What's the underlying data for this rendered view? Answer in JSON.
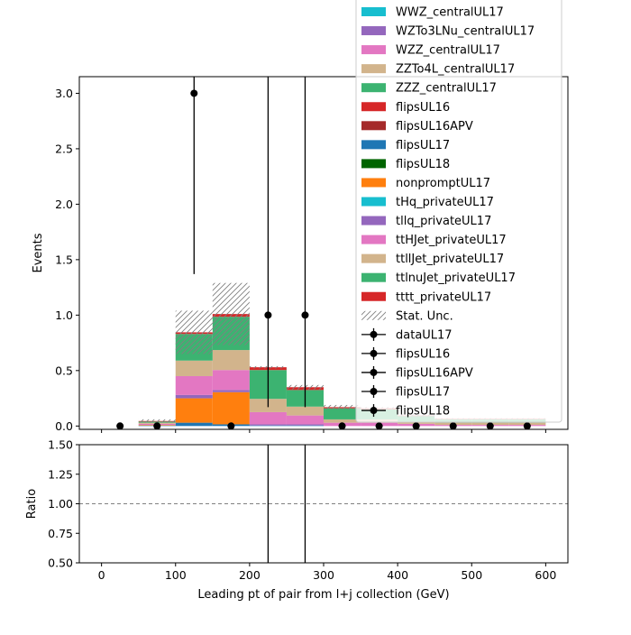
{
  "chart_data": [
    {
      "type": "stacked-bar",
      "panel": "main",
      "xlabel": "",
      "ylabel": "Events",
      "xlim": [
        -30,
        630
      ],
      "ylim": [
        -0.03,
        3.15
      ],
      "y_ticks": [
        0.0,
        0.5,
        1.0,
        1.5,
        2.0,
        2.5,
        3.0
      ],
      "y_tick_labels": [
        "0.0",
        "0.5",
        "1.0",
        "1.5",
        "2.0",
        "2.5",
        "3.0"
      ],
      "x_ticks": [
        0,
        100,
        200,
        300,
        400,
        500,
        600
      ],
      "bin_edges": [
        0,
        50,
        100,
        150,
        200,
        250,
        300,
        350,
        400,
        450,
        500,
        550,
        600
      ],
      "stack_series": [
        {
          "name": "flipsUL17",
          "color": "#1f77b4",
          "values": [
            0,
            0.005,
            0.03,
            0.015,
            0.005,
            0.005,
            0,
            0,
            0,
            0,
            0,
            0
          ]
        },
        {
          "name": "nonpromptUL17",
          "color": "#ff7f0e",
          "values": [
            0,
            0.005,
            0.22,
            0.29,
            0,
            0,
            0,
            0,
            0,
            0,
            0,
            0
          ]
        },
        {
          "name": "tllq_privateUL17",
          "color": "#9467bd",
          "values": [
            0,
            0,
            0.03,
            0.02,
            0.01,
            0.01,
            0,
            0,
            0,
            0,
            0,
            0
          ]
        },
        {
          "name": "ttHJet_privateUL17",
          "color": "#e377c2",
          "values": [
            0,
            0.01,
            0.17,
            0.18,
            0.11,
            0.08,
            0.03,
            0.03,
            0.02,
            0.01,
            0.01,
            0.01
          ]
        },
        {
          "name": "ttllJet_privateUL17",
          "color": "#d2b48c",
          "values": [
            0,
            0.01,
            0.14,
            0.18,
            0.12,
            0.08,
            0.03,
            0.03,
            0.02,
            0.02,
            0.02,
            0.02
          ]
        },
        {
          "name": "ttlnuJet_privateUL17",
          "color": "#3cb371",
          "values": [
            0,
            0.01,
            0.24,
            0.3,
            0.26,
            0.15,
            0.1,
            0.09,
            0.05,
            0.03,
            0.03,
            0.03
          ]
        },
        {
          "name": "tttt_privateUL17",
          "color": "#d62728",
          "values": [
            0,
            0.005,
            0.015,
            0.025,
            0.025,
            0.025,
            0.01,
            0.01,
            0.005,
            0.005,
            0.005,
            0.005
          ]
        }
      ],
      "stat_unc_top": [
        0,
        0.06,
        1.04,
        1.29,
        0.54,
        0.37,
        0.19,
        0.17,
        0.11,
        0.07,
        0.07,
        0.07
      ],
      "data_points": {
        "name": "dataUL17",
        "x": [
          25,
          75,
          125,
          175,
          225,
          275,
          325,
          375,
          425,
          475,
          525,
          575
        ],
        "y": [
          0,
          0,
          3.0,
          0,
          1.0,
          1.0,
          0,
          0,
          0,
          0,
          0,
          0
        ],
        "yerr_low": [
          0,
          0,
          1.63,
          0,
          0.83,
          0.83,
          0,
          0,
          0,
          0,
          0,
          0
        ],
        "yerr_high": [
          0,
          0,
          2.92,
          0,
          2.3,
          2.3,
          0,
          0,
          0,
          0,
          0,
          0
        ]
      },
      "legend_placement": "upper right",
      "legend": [
        {
          "label": "WWZ_centralUL17",
          "kind": "patch",
          "color": "#17becf"
        },
        {
          "label": "WZTo3LNu_centralUL17",
          "kind": "patch",
          "color": "#9467bd"
        },
        {
          "label": "WZZ_centralUL17",
          "kind": "patch",
          "color": "#e377c2"
        },
        {
          "label": "ZZTo4L_centralUL17",
          "kind": "patch",
          "color": "#d2b48c"
        },
        {
          "label": "ZZZ_centralUL17",
          "kind": "patch",
          "color": "#3cb371"
        },
        {
          "label": "flipsUL16",
          "kind": "patch",
          "color": "#d62728"
        },
        {
          "label": "flipsUL16APV",
          "kind": "patch",
          "color": "#a52a2a"
        },
        {
          "label": "flipsUL17",
          "kind": "patch",
          "color": "#1f77b4"
        },
        {
          "label": "flipsUL18",
          "kind": "patch",
          "color": "#006400"
        },
        {
          "label": "nonpromptUL17",
          "kind": "patch",
          "color": "#ff7f0e"
        },
        {
          "label": "tHq_privateUL17",
          "kind": "patch",
          "color": "#17becf"
        },
        {
          "label": "tllq_privateUL17",
          "kind": "patch",
          "color": "#9467bd"
        },
        {
          "label": "ttHJet_privateUL17",
          "kind": "patch",
          "color": "#e377c2"
        },
        {
          "label": "ttllJet_privateUL17",
          "kind": "patch",
          "color": "#d2b48c"
        },
        {
          "label": "ttlnuJet_privateUL17",
          "kind": "patch",
          "color": "#3cb371"
        },
        {
          "label": "tttt_privateUL17",
          "kind": "patch",
          "color": "#d62728"
        },
        {
          "label": "Stat. Unc.",
          "kind": "hatch",
          "color": "#808080"
        },
        {
          "label": "dataUL17",
          "kind": "errorbar",
          "color": "#000000"
        },
        {
          "label": "flipsUL16",
          "kind": "errorbar",
          "color": "#000000"
        },
        {
          "label": "flipsUL16APV",
          "kind": "errorbar",
          "color": "#000000"
        },
        {
          "label": "flipsUL17",
          "kind": "errorbar",
          "color": "#000000"
        },
        {
          "label": "flipsUL18",
          "kind": "errorbar",
          "color": "#000000"
        }
      ]
    },
    {
      "type": "line",
      "panel": "ratio",
      "xlabel": "Leading pt of pair from l+j collection (GeV)",
      "ylabel": "Ratio",
      "xlim": [
        -30,
        630
      ],
      "ylim": [
        0.5,
        1.5
      ],
      "x_ticks": [
        0,
        100,
        200,
        300,
        400,
        500,
        600
      ],
      "x_tick_labels": [
        "0",
        "100",
        "200",
        "300",
        "400",
        "500",
        "600"
      ],
      "y_ticks": [
        0.5,
        0.75,
        1.0,
        1.25,
        1.5
      ],
      "y_tick_labels": [
        "0.50",
        "0.75",
        "1.00",
        "1.25",
        "1.50"
      ],
      "reference_line": 1.0,
      "reference_line_color": "#808080",
      "error_bars": [
        {
          "x": 225,
          "y_low": 0.5,
          "y_high": 1.5
        },
        {
          "x": 275,
          "y_low": 0.5,
          "y_high": 1.5
        }
      ]
    }
  ]
}
